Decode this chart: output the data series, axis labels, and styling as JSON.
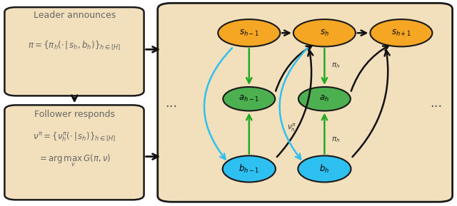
{
  "bg_color": "#f2e0bc",
  "border_color": "#1a1a1a",
  "orange_color": "#f5a623",
  "green_color": "#4caf50",
  "blue_color": "#2ec0f0",
  "text_color": "#666666",
  "arrow_black": "#111111",
  "arrow_green": "#22aa22",
  "arrow_blue": "#2ec0f0",
  "figw": 6.4,
  "figh": 2.89,
  "dpi": 100
}
